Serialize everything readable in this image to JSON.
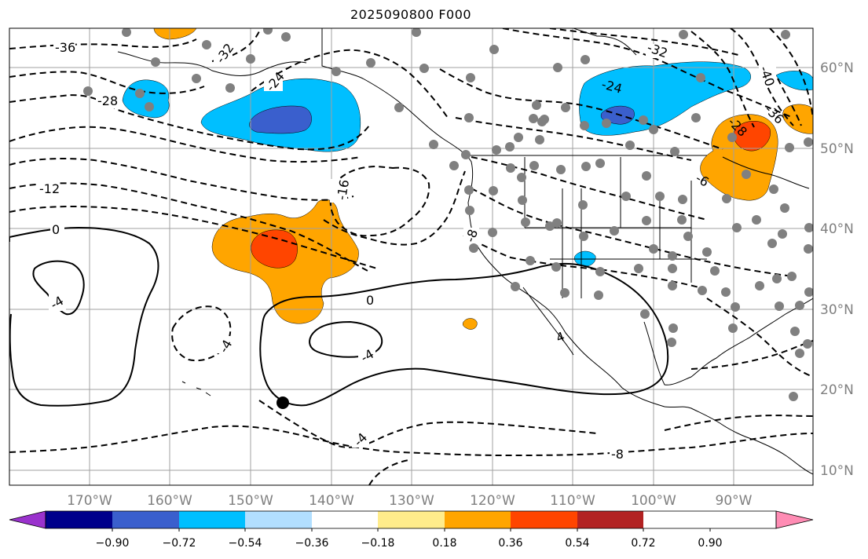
{
  "title": "2025090800 F000",
  "map": {
    "lon_labels": [
      "170°W",
      "160°W",
      "150°W",
      "140°W",
      "130°W",
      "120°W",
      "110°W",
      "100°W",
      "90°W"
    ],
    "lat_labels": [
      "60°N",
      "50°N",
      "40°N",
      "30°N",
      "20°N",
      "10°N"
    ],
    "contour_labels": [
      "-36",
      "-32",
      "-28",
      "-24",
      "-32",
      "-24",
      "-40",
      "-36",
      "-28",
      "-16",
      "-12",
      "-8",
      "0",
      "-4",
      "-4",
      "0",
      "-4",
      "-4",
      "-8",
      "4",
      "-6"
    ],
    "point_color": "#808080",
    "marker_color": "#000000",
    "land_outline_color": "#000000",
    "grid_color": "#a0a0a0"
  },
  "colorbar": {
    "tick_labels": [
      "−0.90",
      "−0.72",
      "−0.54",
      "−0.36",
      "−0.18",
      "0.18",
      "0.36",
      "0.54",
      "0.72",
      "0.90"
    ],
    "colors": [
      "#9a32cd",
      "#00008b",
      "#3a5fcd",
      "#00bfff",
      "#b2dfff",
      "#ffffff",
      "#ffec8b",
      "#ffa500",
      "#ff4500",
      "#b22222",
      "#ff8cb4"
    ]
  }
}
